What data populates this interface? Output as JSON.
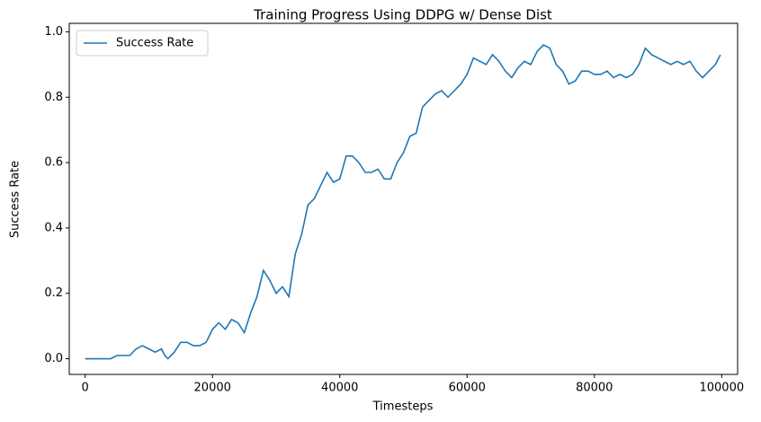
{
  "chart_data": {
    "type": "line",
    "title": "Training Progress Using DDPG w/ Dense Dist",
    "x_label": "Timesteps",
    "y_label": "Success Rate",
    "x": [
      0,
      1000,
      2000,
      3000,
      4000,
      5000,
      6000,
      7000,
      8000,
      9000,
      10000,
      11000,
      12000,
      12500,
      13000,
      14000,
      15000,
      16000,
      17000,
      18000,
      19000,
      20000,
      21000,
      22000,
      23000,
      24000,
      25000,
      26000,
      27000,
      28000,
      29000,
      30000,
      31000,
      32000,
      33000,
      34000,
      35000,
      36000,
      37000,
      38000,
      39000,
      40000,
      41000,
      42000,
      43000,
      44000,
      45000,
      46000,
      47000,
      48000,
      49000,
      50000,
      51000,
      52000,
      53000,
      54000,
      55000,
      56000,
      57000,
      58000,
      59000,
      60000,
      61000,
      62000,
      63000,
      64000,
      65000,
      66000,
      67000,
      68000,
      69000,
      70000,
      71000,
      72000,
      73000,
      74000,
      75000,
      76000,
      77000,
      78000,
      79000,
      80000,
      81000,
      82000,
      83000,
      84000,
      85000,
      86000,
      87000,
      88000,
      89000,
      90000,
      91000,
      92000,
      93000,
      94000,
      95000,
      96000,
      97000,
      98000,
      99000,
      99800
    ],
    "series": [
      {
        "name": "Success Rate",
        "color": "#1f77b4",
        "values": [
          0,
          0,
          0,
          0,
          0,
          0.01,
          0.01,
          0.01,
          0.03,
          0.04,
          0.03,
          0.02,
          0.03,
          0.01,
          0.0,
          0.02,
          0.05,
          0.05,
          0.04,
          0.04,
          0.05,
          0.09,
          0.11,
          0.09,
          0.12,
          0.11,
          0.08,
          0.14,
          0.19,
          0.27,
          0.24,
          0.2,
          0.22,
          0.19,
          0.32,
          0.38,
          0.47,
          0.49,
          0.53,
          0.57,
          0.54,
          0.55,
          0.62,
          0.62,
          0.6,
          0.57,
          0.57,
          0.58,
          0.55,
          0.55,
          0.6,
          0.63,
          0.68,
          0.69,
          0.77,
          0.79,
          0.81,
          0.82,
          0.8,
          0.82,
          0.84,
          0.87,
          0.92,
          0.91,
          0.9,
          0.93,
          0.91,
          0.88,
          0.86,
          0.89,
          0.91,
          0.9,
          0.94,
          0.96,
          0.95,
          0.9,
          0.88,
          0.84,
          0.85,
          0.88,
          0.88,
          0.87,
          0.87,
          0.88,
          0.86,
          0.87,
          0.86,
          0.87,
          0.9,
          0.95,
          0.93,
          0.92,
          0.91,
          0.9,
          0.91,
          0.9,
          0.91,
          0.88,
          0.86,
          0.88,
          0.9,
          0.93
        ]
      }
    ],
    "xlim": [
      -2500,
      102500
    ],
    "xticks": [
      0,
      20000,
      40000,
      60000,
      80000,
      100000
    ],
    "ylim": [
      -0.048,
      1.026
    ],
    "yticks": [
      {
        "value": 0,
        "label": "0.0"
      },
      0.2,
      0.4,
      0.6,
      0.8,
      {
        "value": 1,
        "label": "1.0"
      }
    ],
    "legend": "upper left"
  }
}
